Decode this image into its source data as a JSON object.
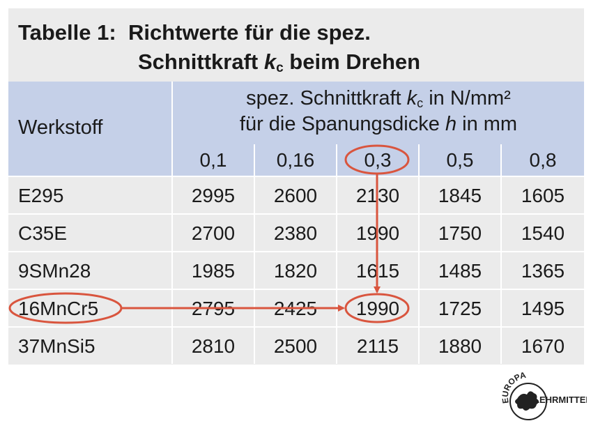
{
  "title": {
    "label": "Tabelle 1:",
    "line1": "Richtwerte für die spez.",
    "line2_pre": "Schnittkraft ",
    "line2_var": "k",
    "line2_sub": "c",
    "line2_post": " beim Drehen"
  },
  "table": {
    "col_header_material": "Werkstoff",
    "group_header_line1_pre": "spez. Schnittkraft ",
    "group_header_line1_var": "k",
    "group_header_line1_sub": "c",
    "group_header_line1_post": " in N/mm²",
    "group_header_line2_pre": "für die Spanungsdicke ",
    "group_header_line2_var": "h",
    "group_header_line2_post": " in mm",
    "thickness": [
      "0,1",
      "0,16",
      "0,3",
      "0,5",
      "0,8"
    ],
    "rows": [
      {
        "material": "E295",
        "values": [
          "2995",
          "2600",
          "2130",
          "1845",
          "1605"
        ]
      },
      {
        "material": "C35E",
        "values": [
          "2700",
          "2380",
          "1990",
          "1750",
          "1540"
        ]
      },
      {
        "material": "9SMn28",
        "values": [
          "1985",
          "1820",
          "1615",
          "1485",
          "1365"
        ]
      },
      {
        "material": "16MnCr5",
        "values": [
          "2795",
          "2425",
          "1990",
          "1725",
          "1495"
        ]
      },
      {
        "material": "37MnSi5",
        "values": [
          "2810",
          "2500",
          "2115",
          "1880",
          "1670"
        ]
      }
    ]
  },
  "highlight": {
    "color": "#d9553e",
    "selected_thickness": "0,3",
    "selected_material": "16MnCr5",
    "selected_value": "1990"
  },
  "logo": {
    "text_top": "EUROPA",
    "text_right": "LEHRMITTEL"
  }
}
